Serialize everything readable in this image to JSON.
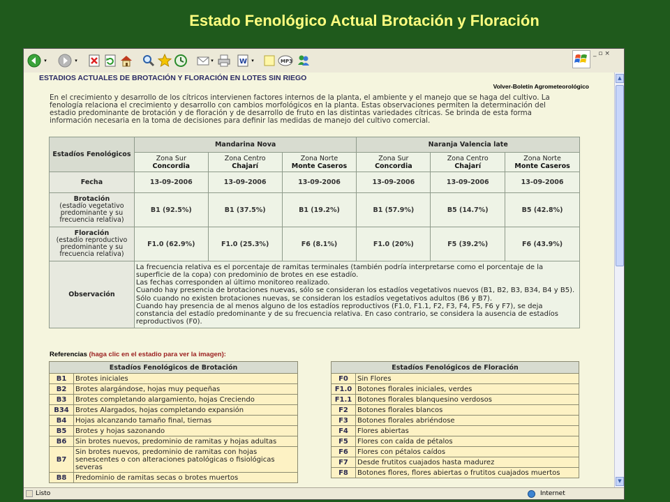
{
  "slide": {
    "title": "Estado Fenológico Actual Brotación y Floración"
  },
  "toolbar": {
    "icons": [
      "back-icon",
      "forward-icon",
      "stop-icon",
      "refresh-icon",
      "home-icon",
      "search-icon",
      "favorites-icon",
      "history-icon",
      "mail-icon",
      "print-icon",
      "word-icon",
      "notes-icon",
      "mp3-icon",
      "messenger-icon"
    ]
  },
  "page": {
    "heading": "ESTADIOS ACTUALES DE BROTACIÓN Y FLORACIÓN EN LOTES SIN RIEGO",
    "back_link": "Volver-Boletín Agrometeorológico",
    "intro": "En el crecimiento y desarrollo de los cítricos intervienen factores internos de la planta, el ambiente y el manejo que se haga del cultivo. La fenología relaciona el crecimiento y desarrollo con cambios morfológicos en la planta. Estas observaciones permiten la determinación del estadio predominante de brotación y de floración y de desarrollo de fruto en las distintas variedades cítricas. Se brinda de esta forma información necesaria en la toma de decisiones para definir las medidas de manejo del cultivo comercial."
  },
  "table": {
    "corner": "Estadíos Fenológicos",
    "groups": [
      "Mandarina Nova",
      "Naranja Valencia late"
    ],
    "zones": [
      {
        "zone": "Zona Sur",
        "place": "Concordia"
      },
      {
        "zone": "Zona Centro",
        "place": "Chajarí"
      },
      {
        "zone": "Zona Norte",
        "place": "Monte Caseros"
      },
      {
        "zone": "Zona Sur",
        "place": "Concordia"
      },
      {
        "zone": "Zona Centro",
        "place": "Chajarí"
      },
      {
        "zone": "Zona Norte",
        "place": "Monte Caseros"
      }
    ],
    "fecha_label": "Fecha",
    "fechas": [
      "13-09-2006",
      "13-09-2006",
      "13-09-2006",
      "13-09-2006",
      "13-09-2006",
      "13-09-2006"
    ],
    "brotacion_label": "Brotación",
    "brotacion_desc": "(estadío vegetativo predominante y su frecuencia relativa)",
    "brotacion": [
      "B1 (92.5%)",
      "B1 (37.5%)",
      "B1 (19.2%)",
      "B1 (57.9%)",
      "B5 (14.7%)",
      "B5 (42.8%)"
    ],
    "floracion_label": "Floración",
    "floracion_desc": "(estadío reproductivo predominante y su frecuencia relativa)",
    "floracion": [
      "F1.0 (62.9%)",
      "F1.0 (25.3%)",
      "F6 (8.1%)",
      "F1.0 (20%)",
      "F5 (39.2%)",
      "F6 (43.9%)"
    ],
    "observacion_label": "Observación",
    "observacion": [
      "La frecuencia relativa es el porcentaje de ramitas terminales (también podría interpretarse como el porcentaje de la superficie de la copa) con predominio de brotes en ese estadío.",
      "Las fechas corresponden al último monitoreo realizado.",
      "Cuando hay presencia de brotaciones nuevas, sólo se consideran los estadíos vegetativos nuevos (B1, B2, B3, B34, B4 y B5). Sólo cuando no existen brotaciones nuevas, se consideran los estadíos vegetativos adultos (B6 y B7).",
      "Cuando hay presencia de al menos alguno de los estadíos reproductivos (F1.0, F1.1, F2, F3, F4, F5, F6 y F7), se deja constancia del estadío predominante y de su frecuencia relativa. En caso contrario, se considera la ausencia de estadíos reproductivos (F0)."
    ]
  },
  "refs": {
    "heading": "Referencias",
    "heading_note": "(haga clic en el estadio para ver la imagen):",
    "brotacion_title": "Estadíos Fenológicos de Brotación",
    "brotacion": [
      {
        "code": "B1",
        "desc": "Brotes iniciales"
      },
      {
        "code": "B2",
        "desc": "Brotes alargándose, hojas muy pequeñas"
      },
      {
        "code": "B3",
        "desc": "Brotes completando alargamiento, hojas Creciendo"
      },
      {
        "code": "B34",
        "desc": "Brotes Alargados, hojas completando expansión"
      },
      {
        "code": "B4",
        "desc": "Hojas alcanzando tamaño final, tiernas"
      },
      {
        "code": "B5",
        "desc": "Brotes y hojas sazonando"
      },
      {
        "code": "B6",
        "desc": "Sin brotes nuevos, predominio de ramitas y hojas adultas"
      },
      {
        "code": "B7",
        "desc": "Sin brotes nuevos, predominio de ramitas con hojas senescentes o con alteraciones patológicas o fisiológicas severas"
      },
      {
        "code": "B8",
        "desc": "Predominio de ramitas secas o brotes muertos"
      }
    ],
    "floracion_title": "Estadíos Fenológicos de Floración",
    "floracion": [
      {
        "code": "F0",
        "desc": "Sin Flores"
      },
      {
        "code": "F1.0",
        "desc": "Botones florales iniciales, verdes"
      },
      {
        "code": "F1.1",
        "desc": "Botones florales blanquesino verdosos"
      },
      {
        "code": "F2",
        "desc": "Botones florales blancos"
      },
      {
        "code": "F3",
        "desc": "Botones florales abriéndose"
      },
      {
        "code": "F4",
        "desc": "Flores abiertas"
      },
      {
        "code": "F5",
        "desc": "Flores con caída de pétalos"
      },
      {
        "code": "F6",
        "desc": "Flores con pétalos caídos"
      },
      {
        "code": "F7",
        "desc": "Desde frutitos cuajados hasta madurez"
      },
      {
        "code": "F8",
        "desc": "Botones flores, flores abiertas o frutitos cuajados muertos"
      }
    ]
  },
  "status": {
    "left": "Listo",
    "zone": "Internet"
  },
  "colors": {
    "background": "#1f5a1c",
    "title": "#ffff80",
    "table_bg": "#eef3e6",
    "ref_bg": "#fdf2c4",
    "heading": "#2a2a64"
  }
}
